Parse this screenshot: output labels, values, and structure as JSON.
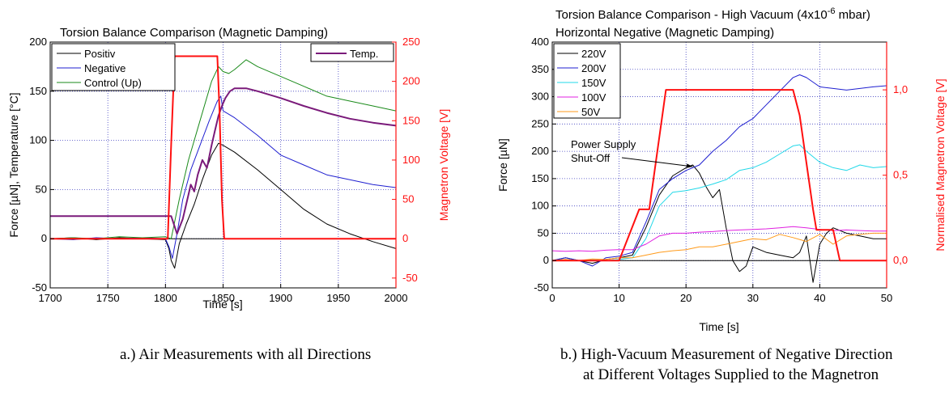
{
  "colors": {
    "black": "#000000",
    "blue": "#1f1fd0",
    "green": "#1a8a1a",
    "purple": "#7a1a7a",
    "red": "#ff1010",
    "cyan": "#22d8e8",
    "magenta": "#e020e0",
    "orange": "#ff9a1a",
    "grid": "#4040c0",
    "axis_red": "#ff1010"
  },
  "captions": {
    "a": "a.) Air Measurements with all Directions",
    "b_line1": "b.) High-Vacuum Measurement of Negative Direction",
    "b_line2": "at Different Voltages Supplied to the Magnetron"
  },
  "chart_data": [
    {
      "type": "line",
      "title": "Torsion Balance Comparison (Magnetic Damping)",
      "xlabel": "Time [s]",
      "ylabel": "Force [µN], Temperature [°C]",
      "y2label": "Magnetron Voltage [V]",
      "xlim": [
        1700,
        2000
      ],
      "ylim": [
        -50,
        200
      ],
      "y2lim": [
        -62.5,
        250
      ],
      "xticks": [
        1700,
        1750,
        1800,
        1850,
        1900,
        1950,
        2000
      ],
      "yticks": [
        -50,
        0,
        50,
        100,
        150,
        200
      ],
      "y2ticks": [
        -50,
        0,
        50,
        100,
        150,
        200,
        250
      ],
      "grid": true,
      "legend_left": "top-left",
      "legend_right": "top-right",
      "series": [
        {
          "name": "Positiv",
          "color": "black",
          "axis": "y",
          "x": [
            1700,
            1720,
            1740,
            1760,
            1780,
            1800,
            1803,
            1805,
            1808,
            1812,
            1818,
            1825,
            1832,
            1840,
            1846,
            1850,
            1860,
            1880,
            1900,
            1920,
            1940,
            1960,
            1980,
            2000
          ],
          "y": [
            0,
            1,
            -1,
            1,
            0,
            -1,
            -10,
            -22,
            -30,
            -5,
            15,
            35,
            60,
            85,
            97,
            95,
            88,
            70,
            50,
            30,
            15,
            5,
            -3,
            -10
          ]
        },
        {
          "name": "Negative",
          "color": "blue",
          "axis": "y",
          "x": [
            1700,
            1720,
            1740,
            1760,
            1780,
            1800,
            1803,
            1806,
            1810,
            1815,
            1822,
            1830,
            1838,
            1845,
            1848,
            1850,
            1860,
            1880,
            1900,
            1920,
            1940,
            1960,
            1980,
            2000
          ],
          "y": [
            0,
            -1,
            1,
            0,
            1,
            0,
            -8,
            -20,
            5,
            40,
            70,
            95,
            120,
            140,
            145,
            130,
            123,
            105,
            85,
            75,
            65,
            60,
            55,
            52
          ]
        },
        {
          "name": "Control (Up)",
          "color": "green",
          "axis": "y",
          "x": [
            1700,
            1720,
            1740,
            1760,
            1780,
            1800,
            1805,
            1812,
            1820,
            1830,
            1840,
            1846,
            1850,
            1855,
            1860,
            1870,
            1880,
            1900,
            1920,
            1940,
            1960,
            1980,
            2000
          ],
          "y": [
            0,
            1,
            0,
            2,
            1,
            2,
            0,
            40,
            80,
            120,
            160,
            175,
            170,
            168,
            172,
            182,
            175,
            165,
            155,
            145,
            140,
            135,
            130
          ]
        },
        {
          "name": "Temp.",
          "color": "purple",
          "axis": "y",
          "x": [
            1700,
            1800,
            1805,
            1810,
            1815,
            1820,
            1822,
            1825,
            1828,
            1832,
            1836,
            1840,
            1843,
            1846,
            1849,
            1852,
            1856,
            1860,
            1870,
            1880,
            1900,
            1920,
            1940,
            1960,
            1980,
            2000
          ],
          "y": [
            23,
            23,
            23,
            5,
            20,
            45,
            55,
            48,
            65,
            80,
            72,
            95,
            110,
            125,
            135,
            143,
            150,
            153,
            153,
            150,
            143,
            135,
            128,
            122,
            118,
            115
          ]
        },
        {
          "name": "",
          "color": "red",
          "axis": "y2",
          "x": [
            1700,
            1802,
            1805,
            1808,
            1845,
            1847,
            1849,
            1851,
            2000
          ],
          "y": [
            0,
            0,
            120,
            232,
            232,
            160,
            50,
            0,
            0
          ]
        }
      ]
    },
    {
      "type": "line",
      "title": "Torsion Balance Comparison - High Vacuum (4x10",
      "title_sup": "-6",
      "title_tail": " mbar)",
      "subtitle": "Horizontal Negative (Magnetic Damping)",
      "xlabel": "Time [s]",
      "ylabel": "Force [µN]",
      "y2label": "Normalised Magnetron Voltage [V]",
      "xlim": [
        0,
        50
      ],
      "ylim": [
        -50,
        400
      ],
      "y2lim": [
        -0.16,
        1.28
      ],
      "xticks": [
        0,
        10,
        20,
        30,
        40,
        50
      ],
      "yticks": [
        -50,
        0,
        50,
        100,
        150,
        200,
        250,
        300,
        350,
        400
      ],
      "y2ticks": [
        "0,0",
        "0,5",
        "1,0"
      ],
      "y2tick_values": [
        0,
        0.5,
        1.0
      ],
      "grid": true,
      "legend": "top-left",
      "annotation": {
        "line1": "Power Supply",
        "line2": "Shut-Off",
        "x": 21,
        "y": 172
      },
      "series": [
        {
          "name": "220V",
          "color": "black",
          "axis": "y",
          "x": [
            0,
            2,
            4,
            6,
            8,
            10,
            12,
            14,
            16,
            18,
            20,
            21,
            22,
            23,
            24,
            25,
            26,
            27,
            28,
            29,
            30,
            32,
            34,
            36,
            37,
            38,
            39,
            40,
            41,
            42,
            44,
            46,
            48,
            50
          ],
          "y": [
            0,
            5,
            0,
            -5,
            2,
            5,
            10,
            60,
            120,
            155,
            170,
            175,
            160,
            135,
            115,
            130,
            60,
            0,
            -20,
            -10,
            25,
            15,
            10,
            5,
            15,
            45,
            -40,
            30,
            50,
            60,
            50,
            45,
            40,
            40
          ]
        },
        {
          "name": "200V",
          "color": "blue",
          "axis": "y",
          "x": [
            0,
            2,
            4,
            6,
            8,
            10,
            12,
            14,
            16,
            18,
            20,
            22,
            24,
            26,
            28,
            30,
            32,
            34,
            36,
            37,
            38,
            40,
            42,
            44,
            46,
            48,
            50
          ],
          "y": [
            0,
            5,
            0,
            -10,
            5,
            8,
            15,
            70,
            130,
            150,
            165,
            175,
            200,
            220,
            245,
            260,
            285,
            310,
            335,
            340,
            335,
            318,
            315,
            312,
            315,
            318,
            320
          ]
        },
        {
          "name": "150V",
          "color": "cyan",
          "axis": "y",
          "x": [
            0,
            2,
            4,
            6,
            8,
            10,
            12,
            14,
            16,
            18,
            20,
            22,
            24,
            26,
            28,
            30,
            32,
            34,
            36,
            37,
            38,
            40,
            42,
            44,
            46,
            48,
            50
          ],
          "y": [
            0,
            2,
            0,
            1,
            0,
            2,
            5,
            40,
            100,
            125,
            128,
            133,
            140,
            148,
            165,
            170,
            180,
            195,
            210,
            212,
            200,
            180,
            170,
            165,
            175,
            170,
            172
          ]
        },
        {
          "name": "100V",
          "color": "magenta",
          "axis": "y",
          "x": [
            0,
            2,
            4,
            6,
            8,
            10,
            12,
            14,
            16,
            18,
            20,
            22,
            24,
            26,
            28,
            30,
            32,
            34,
            36,
            38,
            40,
            42,
            44,
            46,
            48,
            50
          ],
          "y": [
            18,
            17,
            18,
            17,
            19,
            20,
            20,
            30,
            45,
            50,
            50,
            52,
            53,
            55,
            56,
            57,
            58,
            60,
            62,
            60,
            57,
            55,
            56,
            55,
            54,
            54
          ]
        },
        {
          "name": "50V",
          "color": "orange",
          "axis": "y",
          "x": [
            0,
            2,
            4,
            6,
            8,
            10,
            12,
            14,
            16,
            18,
            20,
            22,
            24,
            26,
            28,
            30,
            32,
            34,
            36,
            38,
            40,
            42,
            44,
            46,
            48,
            50
          ],
          "y": [
            0,
            2,
            0,
            3,
            2,
            5,
            5,
            10,
            15,
            18,
            20,
            25,
            25,
            30,
            35,
            40,
            38,
            48,
            42,
            35,
            48,
            30,
            45,
            48,
            50,
            50
          ]
        },
        {
          "name": "",
          "color": "red",
          "axis": "y2",
          "x": [
            0,
            10,
            13,
            13.5,
            14.5,
            17,
            36,
            37,
            39,
            39.5,
            42,
            43,
            50
          ],
          "y": [
            0,
            0,
            0.3,
            0.3,
            0.3,
            1.0,
            1.0,
            0.85,
            0.3,
            0.18,
            0.18,
            0,
            0
          ]
        }
      ]
    }
  ]
}
